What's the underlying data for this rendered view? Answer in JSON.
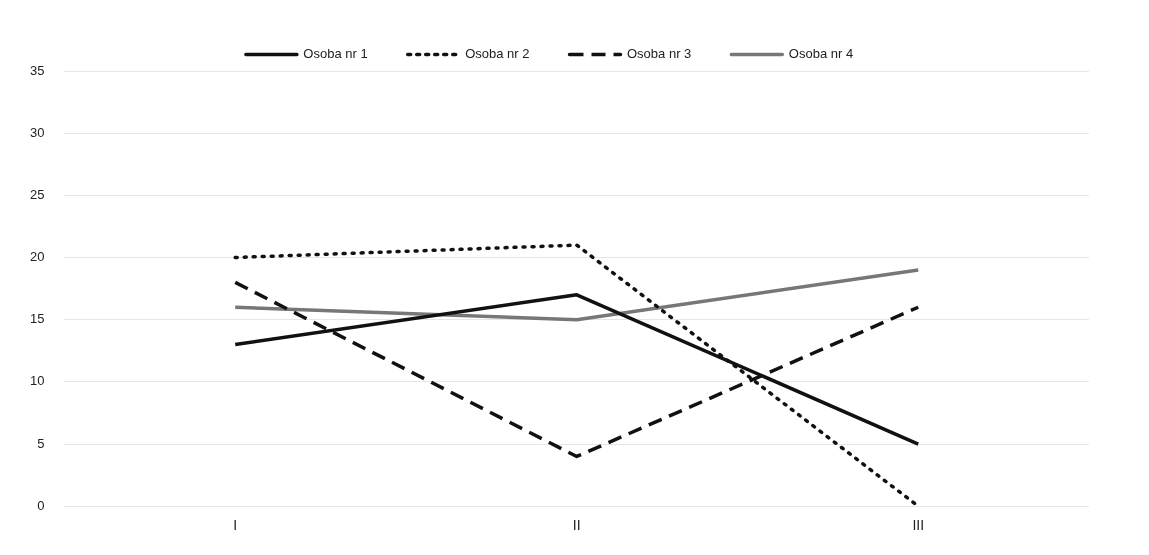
{
  "chart_data": {
    "type": "line",
    "categories": [
      "I",
      "II",
      "III"
    ],
    "series": [
      {
        "name": "Osoba nr 1",
        "color": "#111111",
        "line_style": "solid",
        "values": [
          13,
          17,
          5
        ]
      },
      {
        "name": "Osoba nr 2",
        "color": "#111111",
        "line_style": "dotted",
        "values": [
          20,
          21,
          0
        ]
      },
      {
        "name": "Osoba nr 3",
        "color": "#111111",
        "line_style": "dashed",
        "values": [
          18,
          4,
          16
        ]
      },
      {
        "name": "Osoba nr 4",
        "color": "#777777",
        "line_style": "solid",
        "values": [
          16,
          15,
          19
        ]
      }
    ],
    "ylim": [
      0,
      35
    ],
    "yticks": [
      0,
      5,
      10,
      15,
      20,
      25,
      30,
      35
    ],
    "grid": "y",
    "legend": "top",
    "marker": "none"
  }
}
